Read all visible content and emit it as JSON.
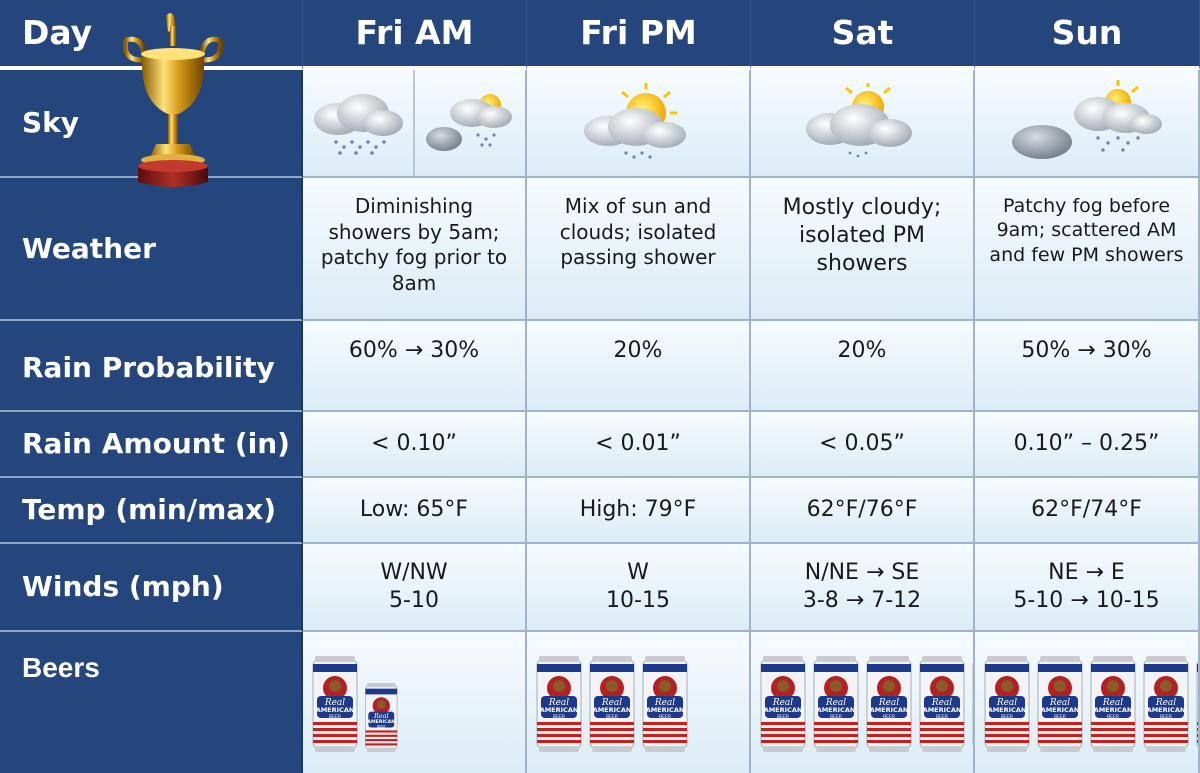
{
  "header": {
    "day_label": "Day",
    "columns": [
      "Fri AM",
      "Fri PM",
      "Sat",
      "Sun"
    ]
  },
  "rows": {
    "sky": "Sky",
    "weather": "Weather",
    "rain_probability": "Rain Probability",
    "rain_amount": "Rain Amount (in)",
    "temp": "Temp (min/max)",
    "winds": "Winds (mph)",
    "beers": "Beers"
  },
  "sky_icons": [
    "rain-cloud-icon",
    "partly-cloudy-shower-icon",
    "partly-cloudy-shower-icon",
    "partly-cloudy-icon",
    "cloud-sun-shower-icon"
  ],
  "weather": [
    "Diminishing showers by 5am; patchy fog prior to 8am",
    "Mix of sun and clouds; isolated passing shower",
    "Mostly cloudy; isolated PM showers",
    "Patchy fog before 9am; scattered AM and few PM showers"
  ],
  "rain_probability": [
    "60% → 30%",
    "20%",
    "20%",
    "50% → 30%"
  ],
  "rain_amount": [
    "< 0.10”",
    "< 0.01”",
    "< 0.05”",
    "0.10” – 0.25”"
  ],
  "temp": [
    "Low: 65°F",
    "High: 79°F",
    "62°F/76°F",
    "62°F/74°F"
  ],
  "winds": [
    {
      "dir": "W/NW",
      "speed": "5-10"
    },
    {
      "dir": "W",
      "speed": "10-15"
    },
    {
      "dir": "N/NE → SE",
      "speed": "3-8 → 7-12"
    },
    {
      "dir": "NE → E",
      "speed": "5-10 → 10-15"
    }
  ],
  "beer_can": {
    "brand_line1": "Real",
    "brand_line2": "AMERICAN",
    "brand_line3": "BEER"
  },
  "colors": {
    "header_bg": "#24467c",
    "cell_bg": "#e6f1f8",
    "border": "#9fb4c9"
  }
}
